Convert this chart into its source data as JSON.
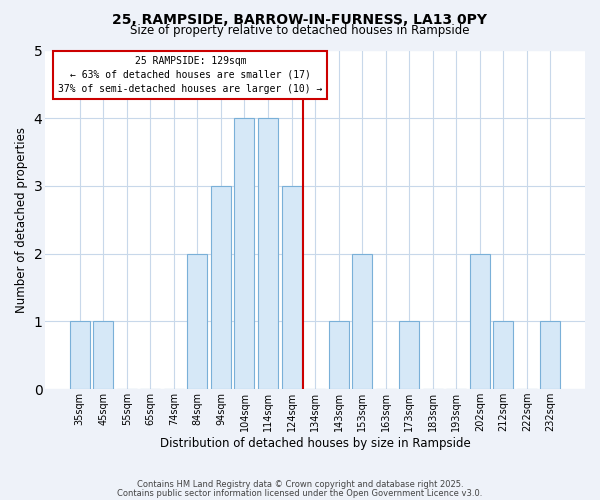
{
  "title": "25, RAMPSIDE, BARROW-IN-FURNESS, LA13 0PY",
  "subtitle": "Size of property relative to detached houses in Rampside",
  "xlabel": "Distribution of detached houses by size in Rampside",
  "ylabel": "Number of detached properties",
  "bar_labels": [
    "35sqm",
    "45sqm",
    "55sqm",
    "65sqm",
    "74sqm",
    "84sqm",
    "94sqm",
    "104sqm",
    "114sqm",
    "124sqm",
    "134sqm",
    "143sqm",
    "153sqm",
    "163sqm",
    "173sqm",
    "183sqm",
    "193sqm",
    "202sqm",
    "212sqm",
    "222sqm",
    "232sqm"
  ],
  "bar_values": [
    1,
    1,
    0,
    0,
    0,
    2,
    3,
    4,
    4,
    3,
    0,
    1,
    2,
    0,
    1,
    0,
    0,
    2,
    1,
    0,
    1
  ],
  "bar_color": "#d6e8f7",
  "bar_edge_color": "#7ab0d8",
  "vline_x_idx": 9.5,
  "vline_color": "#cc0000",
  "ylim": [
    0,
    5
  ],
  "yticks": [
    0,
    1,
    2,
    3,
    4,
    5
  ],
  "annotation_title": "25 RAMPSIDE: 129sqm",
  "annotation_line1": "← 63% of detached houses are smaller (17)",
  "annotation_line2": "37% of semi-detached houses are larger (10) →",
  "annotation_box_color": "#ffffff",
  "annotation_box_edge": "#cc0000",
  "footer1": "Contains HM Land Registry data © Crown copyright and database right 2025.",
  "footer2": "Contains public sector information licensed under the Open Government Licence v3.0.",
  "bg_color": "#eef2f9",
  "plot_bg_color": "#ffffff",
  "grid_color": "#c8d8ea"
}
